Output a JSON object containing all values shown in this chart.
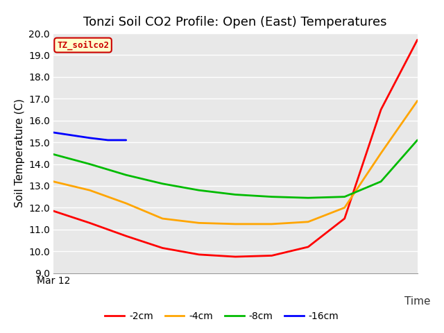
{
  "title": "Tonzi Soil CO2 Profile: Open (East) Temperatures",
  "ylabel": "Soil Temperature (C)",
  "xlabel": "Time",
  "xlim": [
    0,
    10
  ],
  "ylim": [
    9.0,
    20.0
  ],
  "yticks": [
    9.0,
    10.0,
    11.0,
    12.0,
    13.0,
    14.0,
    15.0,
    16.0,
    17.0,
    18.0,
    19.0,
    20.0
  ],
  "x_start_label": "Mar 12",
  "dataset_label": "TZ_soilco2",
  "series": [
    {
      "label": "-2cm",
      "color": "#ff0000",
      "x": [
        0,
        1,
        2,
        3,
        4,
        5,
        6,
        7,
        8,
        9,
        10
      ],
      "y": [
        11.85,
        11.3,
        10.7,
        10.15,
        9.85,
        9.75,
        9.8,
        10.2,
        11.5,
        16.5,
        19.7
      ]
    },
    {
      "label": "-4cm",
      "color": "#ffa500",
      "x": [
        0,
        1,
        2,
        3,
        4,
        5,
        6,
        7,
        8,
        9,
        10
      ],
      "y": [
        13.2,
        12.8,
        12.2,
        11.5,
        11.3,
        11.25,
        11.25,
        11.35,
        12.0,
        14.5,
        16.9
      ]
    },
    {
      "label": "-8cm",
      "color": "#00bb00",
      "x": [
        0,
        1,
        2,
        3,
        4,
        5,
        6,
        7,
        8,
        9,
        10
      ],
      "y": [
        14.45,
        14.0,
        13.5,
        13.1,
        12.8,
        12.6,
        12.5,
        12.45,
        12.5,
        13.2,
        15.1
      ]
    },
    {
      "label": "-16cm",
      "color": "#0000ff",
      "x": [
        0,
        1,
        1.5,
        2
      ],
      "y": [
        15.45,
        15.2,
        15.1,
        15.1
      ]
    }
  ],
  "bg_color": "#e8e8e8",
  "fig_bg_color": "#ffffff",
  "legend_label_color": "#cc0000",
  "legend_bg": "#ffffcc",
  "legend_border": "#cc0000",
  "title_fontsize": 13,
  "axis_label_fontsize": 11,
  "tick_fontsize": 10,
  "line_width": 2.0,
  "grid_color": "#ffffff",
  "grid_linewidth": 1.0
}
